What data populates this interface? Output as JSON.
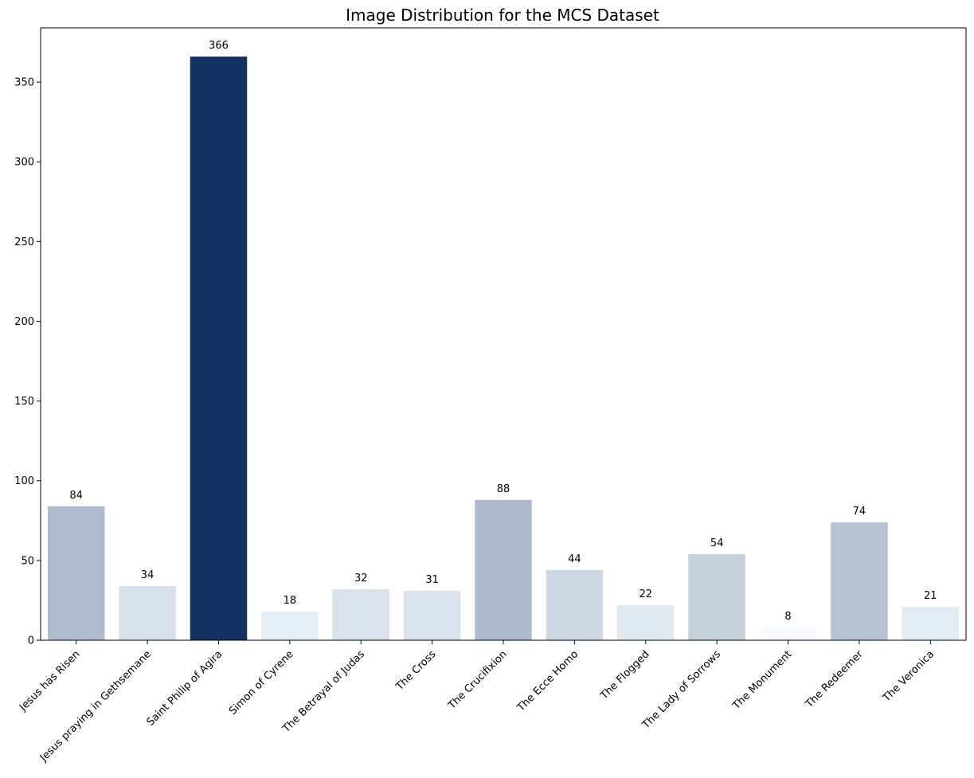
{
  "chart_data": {
    "type": "bar",
    "title": "Image Distribution for the MCS Dataset",
    "xlabel": "",
    "ylabel": "",
    "categories": [
      "Jesus has Risen",
      "Jesus praying in Gethsemane",
      "Saint Philip of Agira",
      "Simon of Cyrene",
      "The Betrayal of Judas",
      "The Cross",
      "The Crucifixion",
      "The Ecce Homo",
      "The Flogged",
      "The Lady of Sorrows",
      "The Monument",
      "The Redeemer",
      "The Veronica"
    ],
    "values": [
      84,
      34,
      366,
      18,
      32,
      31,
      88,
      44,
      22,
      54,
      8,
      74,
      21
    ],
    "data_labels": [
      "84",
      "34",
      "366",
      "18",
      "32",
      "31",
      "88",
      "44",
      "22",
      "54",
      "8",
      "74",
      "21"
    ],
    "ylim": [
      0,
      384
    ],
    "yticks": [
      0,
      50,
      100,
      150,
      200,
      250,
      300,
      350
    ],
    "ytick_labels": [
      "0",
      "50",
      "100",
      "150",
      "200",
      "250",
      "300",
      "350"
    ],
    "grid": false,
    "colors": {
      "low": "#f7fbff",
      "high": "#14325f"
    }
  }
}
